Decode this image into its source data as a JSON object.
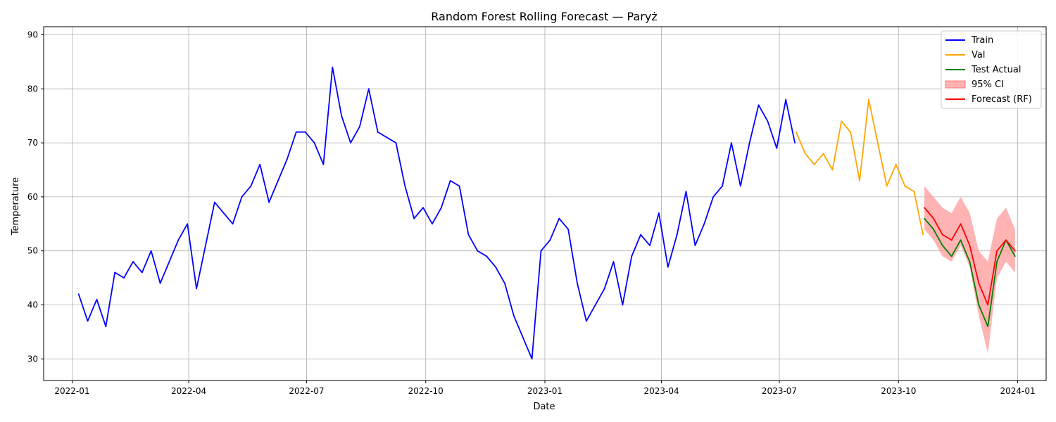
{
  "chart_data": {
    "type": "line",
    "title": "Random Forest Rolling Forecast — Paryż",
    "xlabel": "Date",
    "ylabel": "Temperature",
    "xlim": [
      "2021-12-10",
      "2024-01-23"
    ],
    "ylim": [
      26,
      91.5
    ],
    "x_ticks": [
      "2022-01",
      "2022-04",
      "2022-07",
      "2022-10",
      "2023-01",
      "2023-04",
      "2023-07",
      "2023-10",
      "2024-01"
    ],
    "y_ticks": [
      30,
      40,
      50,
      60,
      70,
      80,
      90
    ],
    "grid": true,
    "legend_position": "top-right",
    "colors": {
      "train": "#0000ff",
      "val": "#ffa500",
      "test": "#008000",
      "ci": "#ff9999",
      "forecast": "#ff0000"
    },
    "series": [
      {
        "name": "Train",
        "x": [
          "2022-01-06",
          "2022-01-13",
          "2022-01-20",
          "2022-01-27",
          "2022-02-03",
          "2022-02-10",
          "2022-02-17",
          "2022-02-24",
          "2022-03-03",
          "2022-03-10",
          "2022-03-17",
          "2022-03-24",
          "2022-03-31",
          "2022-04-07",
          "2022-04-14",
          "2022-04-21",
          "2022-04-28",
          "2022-05-05",
          "2022-05-12",
          "2022-05-19",
          "2022-05-26",
          "2022-06-02",
          "2022-06-09",
          "2022-06-16",
          "2022-06-23",
          "2022-06-30",
          "2022-07-07",
          "2022-07-14",
          "2022-07-21",
          "2022-07-28",
          "2022-08-04",
          "2022-08-11",
          "2022-08-18",
          "2022-08-25",
          "2022-09-01",
          "2022-09-08",
          "2022-09-15",
          "2022-09-22",
          "2022-09-29",
          "2022-10-06",
          "2022-10-13",
          "2022-10-20",
          "2022-10-27",
          "2022-11-03",
          "2022-11-10",
          "2022-11-17",
          "2022-11-24",
          "2022-12-01",
          "2022-12-08",
          "2022-12-15",
          "2022-12-22",
          "2022-12-29",
          "2023-01-05",
          "2023-01-12",
          "2023-01-19",
          "2023-01-26",
          "2023-02-02",
          "2023-02-09",
          "2023-02-16",
          "2023-02-23",
          "2023-03-02",
          "2023-03-09",
          "2023-03-16",
          "2023-03-23",
          "2023-03-30",
          "2023-04-06",
          "2023-04-13",
          "2023-04-20",
          "2023-04-27",
          "2023-05-04",
          "2023-05-11",
          "2023-05-18",
          "2023-05-25",
          "2023-06-01",
          "2023-06-08",
          "2023-06-15",
          "2023-06-22",
          "2023-06-29",
          "2023-07-06",
          "2023-07-13"
        ],
        "values": [
          42,
          37,
          41,
          36,
          46,
          45,
          48,
          46,
          50,
          44,
          48,
          52,
          55,
          43,
          51,
          59,
          57,
          55,
          60,
          62,
          66,
          59,
          63,
          67,
          72,
          72,
          70,
          66,
          84,
          75,
          70,
          73,
          80,
          72,
          71,
          70,
          62,
          56,
          58,
          55,
          58,
          63,
          62,
          53,
          50,
          49,
          47,
          44,
          38,
          34,
          30,
          50,
          52,
          56,
          54,
          44,
          37,
          40,
          43,
          48,
          40,
          49,
          53,
          51,
          57,
          47,
          53,
          61,
          51,
          55,
          60,
          62,
          70,
          62,
          70,
          77,
          74,
          69,
          78,
          70
        ],
        "color": "#0000ff"
      },
      {
        "name": "Val",
        "x": [
          "2023-07-14",
          "2023-07-21",
          "2023-07-28",
          "2023-08-04",
          "2023-08-11",
          "2023-08-18",
          "2023-08-25",
          "2023-09-01",
          "2023-09-08",
          "2023-09-15",
          "2023-09-22",
          "2023-09-29",
          "2023-10-06",
          "2023-10-13",
          "2023-10-20"
        ],
        "values": [
          72,
          68,
          66,
          68,
          65,
          74,
          72,
          63,
          78,
          70,
          62,
          66,
          62,
          61,
          53
        ],
        "color": "#ffa500"
      },
      {
        "name": "Test Actual",
        "x": [
          "2023-10-21",
          "2023-10-28",
          "2023-11-04",
          "2023-11-11",
          "2023-11-18",
          "2023-11-25",
          "2023-12-02",
          "2023-12-09",
          "2023-12-16",
          "2023-12-23",
          "2023-12-30"
        ],
        "values": [
          56,
          54,
          51,
          49,
          52,
          48,
          40,
          36,
          48,
          52,
          49
        ],
        "color": "#008000"
      },
      {
        "name": "Forecast (RF)",
        "x": [
          "2023-10-21",
          "2023-10-28",
          "2023-11-04",
          "2023-11-11",
          "2023-11-18",
          "2023-11-25",
          "2023-12-02",
          "2023-12-09",
          "2023-12-16",
          "2023-12-23",
          "2023-12-30"
        ],
        "values": [
          58,
          56,
          53,
          52,
          55,
          51,
          44,
          40,
          50,
          52,
          50
        ],
        "color": "#ff0000"
      }
    ],
    "confidence_interval": {
      "name": "95% CI",
      "x": [
        "2023-10-21",
        "2023-10-28",
        "2023-11-04",
        "2023-11-11",
        "2023-11-18",
        "2023-11-25",
        "2023-12-02",
        "2023-12-09",
        "2023-12-16",
        "2023-12-23",
        "2023-12-30"
      ],
      "lower": [
        54,
        52,
        49,
        48,
        51,
        47,
        38,
        31,
        45,
        48,
        46
      ],
      "upper": [
        62,
        60,
        58,
        57,
        60,
        57,
        50,
        48,
        56,
        58,
        54
      ]
    }
  }
}
